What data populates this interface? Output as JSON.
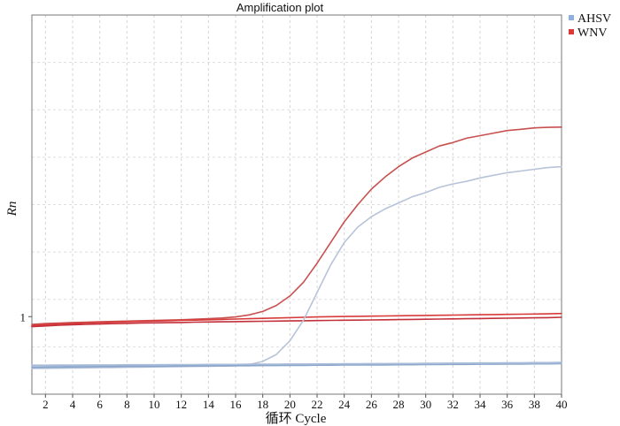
{
  "chart_data": {
    "type": "line",
    "title": "Amplification plot",
    "xlabel": "循环 Cycle",
    "ylabel": "Rn",
    "xlim": [
      1,
      40
    ],
    "x_ticks": [
      2,
      4,
      6,
      8,
      10,
      12,
      14,
      16,
      18,
      20,
      22,
      24,
      26,
      28,
      30,
      32,
      34,
      36,
      38,
      40
    ],
    "ylim": [
      0.55,
      2.75
    ],
    "y_ticks": [
      1
    ],
    "grid": true,
    "legend": {
      "position": "top-right",
      "entries": [
        {
          "name": "AHSV",
          "color": "#8fb0d8"
        },
        {
          "name": "WNV",
          "color": "#d83a3a"
        }
      ]
    },
    "x": [
      1,
      2,
      3,
      4,
      5,
      6,
      7,
      8,
      9,
      10,
      11,
      12,
      13,
      14,
      15,
      16,
      17,
      18,
      19,
      20,
      21,
      22,
      23,
      24,
      25,
      26,
      27,
      28,
      29,
      30,
      31,
      32,
      33,
      34,
      35,
      36,
      37,
      38,
      39,
      40
    ],
    "series": [
      {
        "name": "WNV",
        "color": "#c8504f",
        "values": [
          0.955,
          0.96,
          0.963,
          0.966,
          0.968,
          0.97,
          0.972,
          0.974,
          0.976,
          0.978,
          0.98,
          0.982,
          0.985,
          0.988,
          0.992,
          0.998,
          1.01,
          1.03,
          1.065,
          1.12,
          1.2,
          1.31,
          1.43,
          1.55,
          1.65,
          1.74,
          1.81,
          1.87,
          1.92,
          1.955,
          1.99,
          2.01,
          2.035,
          2.05,
          2.065,
          2.08,
          2.087,
          2.095,
          2.098,
          2.1
        ]
      },
      {
        "name": "WNV",
        "color": "#d83a3a",
        "values": [
          0.948,
          0.953,
          0.957,
          0.96,
          0.963,
          0.966,
          0.968,
          0.97,
          0.972,
          0.974,
          0.976,
          0.978,
          0.98,
          0.982,
          0.984,
          0.986,
          0.988,
          0.99,
          0.992,
          0.994,
          0.996,
          0.998,
          1.0,
          1.001,
          1.002,
          1.003,
          1.004,
          1.005,
          1.006,
          1.007,
          1.008,
          1.009,
          1.01,
          1.011,
          1.012,
          1.013,
          1.014,
          1.015,
          1.016,
          1.018
        ]
      },
      {
        "name": "WNV",
        "color": "#c2303a",
        "values": [
          0.942,
          0.946,
          0.95,
          0.953,
          0.955,
          0.957,
          0.959,
          0.961,
          0.963,
          0.964,
          0.965,
          0.966,
          0.968,
          0.969,
          0.97,
          0.971,
          0.972,
          0.973,
          0.974,
          0.975,
          0.976,
          0.977,
          0.978,
          0.979,
          0.98,
          0.981,
          0.982,
          0.983,
          0.984,
          0.985,
          0.986,
          0.987,
          0.988,
          0.989,
          0.99,
          0.991,
          0.992,
          0.993,
          0.994,
          0.996
        ]
      },
      {
        "name": "AHSV",
        "color": "#b7c3d9",
        "values": [
          0.7,
          0.7,
          0.701,
          0.702,
          0.703,
          0.704,
          0.705,
          0.706,
          0.707,
          0.708,
          0.709,
          0.71,
          0.711,
          0.712,
          0.713,
          0.714,
          0.722,
          0.74,
          0.78,
          0.86,
          0.98,
          1.14,
          1.3,
          1.43,
          1.52,
          1.58,
          1.625,
          1.66,
          1.695,
          1.72,
          1.75,
          1.77,
          1.785,
          1.805,
          1.82,
          1.835,
          1.845,
          1.855,
          1.865,
          1.87
        ]
      },
      {
        "name": "AHSV",
        "color": "#9bb3d4",
        "values": [
          0.714,
          0.714,
          0.715,
          0.716,
          0.716,
          0.717,
          0.717,
          0.718,
          0.718,
          0.719,
          0.719,
          0.72,
          0.72,
          0.721,
          0.721,
          0.722,
          0.722,
          0.723,
          0.723,
          0.724,
          0.724,
          0.725,
          0.725,
          0.726,
          0.726,
          0.727,
          0.727,
          0.728,
          0.728,
          0.729,
          0.729,
          0.73,
          0.73,
          0.731,
          0.731,
          0.732,
          0.732,
          0.733,
          0.733,
          0.734
        ]
      },
      {
        "name": "AHSV",
        "color": "#8aa6cc",
        "values": [
          0.705,
          0.706,
          0.707,
          0.708,
          0.709,
          0.71,
          0.71,
          0.711,
          0.711,
          0.712,
          0.712,
          0.713,
          0.713,
          0.714,
          0.714,
          0.715,
          0.715,
          0.716,
          0.716,
          0.717,
          0.717,
          0.718,
          0.718,
          0.719,
          0.719,
          0.72,
          0.72,
          0.721,
          0.721,
          0.722,
          0.722,
          0.723,
          0.723,
          0.724,
          0.724,
          0.725,
          0.725,
          0.726,
          0.726,
          0.727
        ]
      },
      {
        "name": "AHSV",
        "color": "#a9bcd8",
        "values": [
          0.718,
          0.718,
          0.719,
          0.719,
          0.72,
          0.72,
          0.72,
          0.721,
          0.721,
          0.721,
          0.722,
          0.722,
          0.722,
          0.723,
          0.723,
          0.723,
          0.724,
          0.724,
          0.724,
          0.725,
          0.725,
          0.725,
          0.726,
          0.726,
          0.726,
          0.727,
          0.727,
          0.727,
          0.728,
          0.728,
          0.728,
          0.729,
          0.729,
          0.729,
          0.73,
          0.73,
          0.73,
          0.731,
          0.731,
          0.732
        ]
      }
    ]
  }
}
